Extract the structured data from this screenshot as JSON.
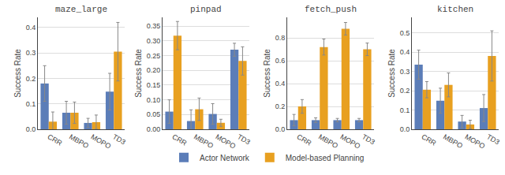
{
  "chart_data": [
    {
      "type": "bar",
      "title": "maze_large",
      "categories": [
        "CRR",
        "MBPO",
        "MOPO",
        "TD3"
      ],
      "series": [
        {
          "name": "Actor Network",
          "color": "#5B7DB8",
          "values": [
            0.18,
            0.065,
            0.025,
            0.148
          ],
          "errors": [
            0.07,
            0.045,
            0.018,
            0.072
          ]
        },
        {
          "name": "Model-based Planning",
          "color": "#E8A020",
          "values": [
            0.03,
            0.065,
            0.028,
            0.305
          ],
          "errors": [
            0.038,
            0.042,
            0.028,
            0.115
          ]
        }
      ],
      "ylabel": "Success Rate",
      "ylim": [
        0.0,
        0.44
      ],
      "yticks": [
        {
          "value": 0.0,
          "label": "0.0"
        },
        0.1,
        0.2,
        0.3,
        0.4
      ],
      "grid": true,
      "legend": "bottom"
    },
    {
      "type": "bar",
      "title": "pinpad",
      "categories": [
        "CRR",
        "MBPO",
        "MOPO",
        "TD3"
      ],
      "series": [
        {
          "name": "Actor Network",
          "color": "#5B7DB8",
          "values": [
            0.06,
            0.028,
            0.052,
            0.27
          ],
          "errors": [
            0.04,
            0.038,
            0.035,
            0.022
          ]
        },
        {
          "name": "Model-based Planning",
          "color": "#E8A020",
          "values": [
            0.318,
            0.068,
            0.022,
            0.232
          ],
          "errors": [
            0.048,
            0.038,
            0.012,
            0.048
          ]
        }
      ],
      "ylabel": "Success Rate",
      "ylim": [
        0.0,
        0.38
      ],
      "yticks": [
        {
          "value": 0.0,
          "label": "0.00"
        },
        0.05,
        {
          "value": 0.1,
          "label": "0.10"
        },
        0.15,
        {
          "value": 0.2,
          "label": "0.20"
        },
        0.25,
        {
          "value": 0.3,
          "label": "0.30"
        },
        0.35
      ],
      "grid": true
    },
    {
      "type": "bar",
      "title": "fetch_push",
      "categories": [
        "CRR",
        "MBPO",
        "MOPO",
        "TD3"
      ],
      "series": [
        {
          "name": "Actor Network",
          "color": "#5B7DB8",
          "values": [
            0.08,
            0.08,
            0.08,
            0.08
          ],
          "errors": [
            0.05,
            0.02,
            0.015,
            0.015
          ]
        },
        {
          "name": "Model-based Planning",
          "color": "#E8A020",
          "values": [
            0.2,
            0.72,
            0.88,
            0.7
          ],
          "errors": [
            0.06,
            0.07,
            0.055,
            0.055
          ]
        }
      ],
      "ylabel": "Success Rate",
      "ylim": [
        0.0,
        0.98
      ],
      "yticks": [
        {
          "value": 0.0,
          "label": "0.0"
        },
        0.2,
        0.4,
        0.6,
        0.8
      ],
      "grid": true
    },
    {
      "type": "bar",
      "title": "kitchen",
      "categories": [
        "CRR",
        "MBPO",
        "MOPO",
        "TD3"
      ],
      "series": [
        {
          "name": "Actor Network",
          "color": "#5B7DB8",
          "values": [
            0.335,
            0.148,
            0.04,
            0.11
          ],
          "errors": [
            0.075,
            0.065,
            0.032,
            0.07
          ]
        },
        {
          "name": "Model-based Planning",
          "color": "#E8A020",
          "values": [
            0.205,
            0.23,
            0.025,
            0.38
          ],
          "errors": [
            0.042,
            0.062,
            0.022,
            0.13
          ]
        }
      ],
      "ylabel": "Success Rate",
      "ylim": [
        0.0,
        0.58
      ],
      "yticks": [
        {
          "value": 0.0,
          "label": "0.0"
        },
        0.1,
        0.2,
        0.3,
        0.4,
        0.5
      ],
      "grid": true
    }
  ]
}
